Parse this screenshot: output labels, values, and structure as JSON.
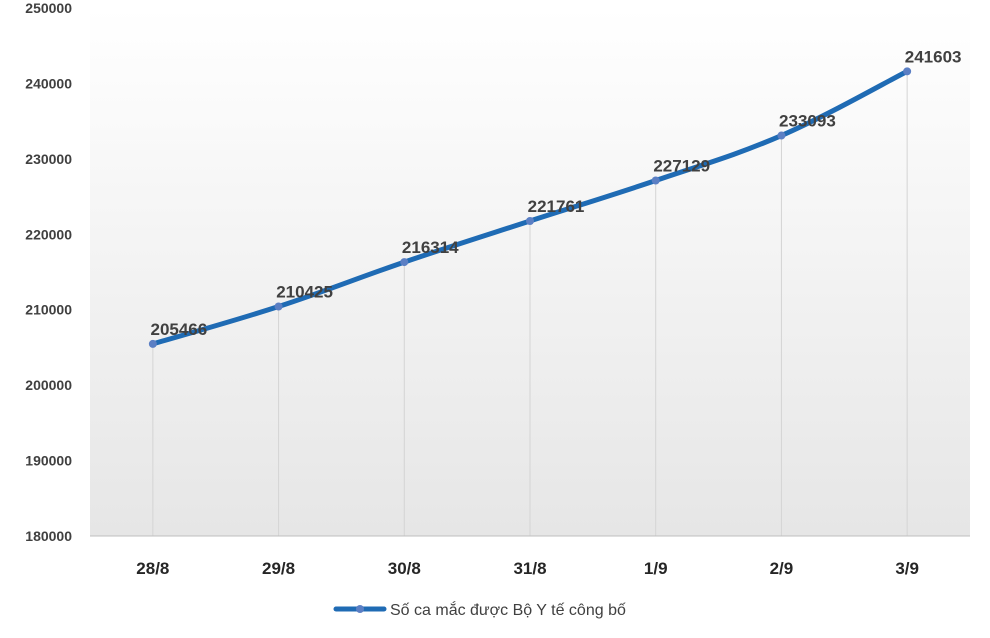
{
  "chart_data": {
    "type": "line",
    "title": "",
    "xlabel": "",
    "ylabel": "",
    "categories": [
      "28/8",
      "29/8",
      "30/8",
      "31/8",
      "1/9",
      "2/9",
      "3/9"
    ],
    "series": [
      {
        "name": "Số ca mắc được Bộ Y tế công bố",
        "values": [
          205466,
          210425,
          216314,
          221761,
          227129,
          233093,
          241603
        ],
        "color": "#1F6BB4",
        "marker_color": "#5B7FC4"
      }
    ],
    "ylim": [
      180000,
      250000
    ],
    "yticks": [
      "180000",
      "190000",
      "200000",
      "210000",
      "220000",
      "230000",
      "240000",
      "250000"
    ],
    "grid": "vertical",
    "legend": "bottom",
    "plot_background": "gradient-gray"
  }
}
